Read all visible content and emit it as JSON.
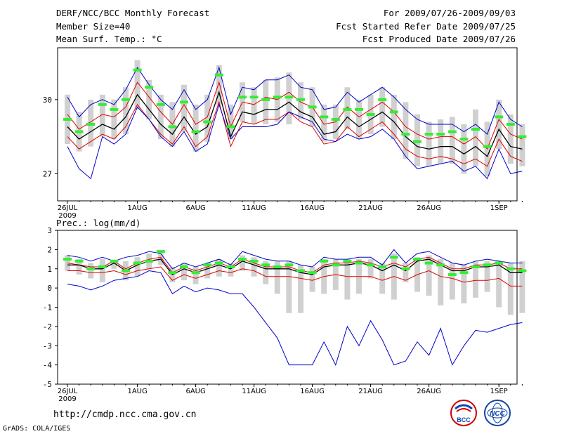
{
  "header": {
    "title": "DERF/NCC/BCC Monthly Forecast",
    "member_size": "Member Size=40",
    "variable1": "Mean Surf. Temp.: °C",
    "period": "For 2009/07/26-2009/09/03",
    "started": "Fcst Started Refer Date 2009/07/25",
    "produced": "Fcst Produced Date 2009/07/26"
  },
  "footer": {
    "url": "http://cmdp.ncc.cma.gov.cn",
    "grads": "GrADS: COLA/IGES",
    "logo1_text": "BCC",
    "logo2_text": "NCC"
  },
  "colors": {
    "max_min": "#0000cc",
    "spread": "#dd0000",
    "mean": "#000000",
    "obs": "#33ee33",
    "box": "#d0d0d0"
  },
  "chart_data": [
    {
      "type": "line",
      "title": "Mean Surf. Temp.: °C",
      "ylim": [
        25.9,
        32.1
      ],
      "yticks": [
        "27",
        "30"
      ],
      "xticks": [
        "26JUL",
        "1AUG",
        "6AUG",
        "11AUG",
        "16AUG",
        "21AUG",
        "26AUG",
        "1SEP"
      ],
      "year_label": "2009",
      "days": 40,
      "series": [
        {
          "name": "max",
          "values": [
            30.1,
            29.3,
            29.8,
            30.0,
            29.8,
            30.4,
            31.3,
            30.6,
            30.0,
            29.6,
            30.4,
            29.6,
            30.0,
            31.3,
            29.4,
            30.5,
            30.4,
            30.8,
            30.8,
            31.0,
            30.5,
            30.4,
            29.6,
            29.7,
            30.3,
            29.9,
            30.2,
            30.5,
            30.1,
            29.6,
            29.2,
            29.0,
            29.0,
            29.0,
            28.7,
            29.0,
            28.6,
            29.9,
            29.2,
            28.9
          ]
        },
        {
          "name": "spread_hi",
          "values": [
            29.4,
            28.8,
            29.1,
            29.4,
            29.3,
            29.7,
            30.7,
            30.1,
            29.5,
            29.0,
            29.8,
            29.0,
            29.3,
            30.7,
            28.9,
            29.9,
            29.8,
            30.1,
            30.0,
            30.3,
            29.9,
            29.7,
            29.0,
            29.1,
            29.7,
            29.3,
            29.6,
            29.9,
            29.5,
            28.9,
            28.6,
            28.4,
            28.5,
            28.5,
            28.2,
            28.5,
            28.0,
            29.2,
            28.6,
            28.4
          ]
        },
        {
          "name": "mean",
          "values": [
            28.9,
            28.4,
            28.7,
            29.0,
            28.8,
            29.3,
            30.2,
            29.6,
            29.0,
            28.6,
            29.3,
            28.6,
            28.9,
            30.3,
            28.5,
            29.5,
            29.4,
            29.6,
            29.6,
            29.9,
            29.5,
            29.3,
            28.6,
            28.7,
            29.3,
            28.9,
            29.2,
            29.5,
            29.1,
            28.5,
            28.1,
            28.0,
            28.1,
            28.1,
            27.8,
            28.1,
            27.7,
            28.8,
            28.1,
            28.0
          ]
        },
        {
          "name": "spread_lo",
          "values": [
            28.5,
            28.0,
            28.3,
            28.6,
            28.4,
            28.9,
            29.8,
            29.2,
            28.6,
            28.2,
            28.9,
            28.1,
            28.5,
            29.9,
            28.1,
            29.1,
            29.0,
            29.2,
            29.2,
            29.5,
            29.1,
            28.9,
            28.2,
            28.3,
            28.9,
            28.5,
            28.8,
            29.1,
            28.6,
            28.0,
            27.7,
            27.6,
            27.7,
            27.6,
            27.4,
            27.6,
            27.3,
            28.4,
            27.7,
            27.5
          ]
        },
        {
          "name": "min",
          "values": [
            28.1,
            27.2,
            26.8,
            28.5,
            28.2,
            28.6,
            29.7,
            29.2,
            28.5,
            28.1,
            28.7,
            27.9,
            28.2,
            29.8,
            28.4,
            28.9,
            28.9,
            28.9,
            29.0,
            29.5,
            29.3,
            29.1,
            28.4,
            28.3,
            28.6,
            28.4,
            28.5,
            28.8,
            28.4,
            27.7,
            27.2,
            27.3,
            27.4,
            27.5,
            27.1,
            27.3,
            26.8,
            28.0,
            27.0,
            27.1
          ]
        },
        {
          "name": "obs",
          "values": [
            29.2,
            28.7,
            29.0,
            29.8,
            29.6,
            30.0,
            31.2,
            30.5,
            29.8,
            28.9,
            29.9,
            28.7,
            29.1,
            31.0,
            28.9,
            30.1,
            30.1,
            30.0,
            30.1,
            30.1,
            30.0,
            29.7,
            29.3,
            29.2,
            29.6,
            29.6,
            29.4,
            30.0,
            29.5,
            28.6,
            28.3,
            28.6,
            28.6,
            28.7,
            28.4,
            28.8,
            28.1,
            29.3,
            29.0,
            28.5
          ]
        }
      ],
      "box_range": {
        "hi": [
          30.2,
          29.5,
          30.0,
          30.2,
          30.0,
          30.5,
          31.6,
          30.8,
          30.2,
          29.9,
          30.6,
          29.8,
          30.2,
          31.4,
          29.8,
          30.7,
          30.5,
          30.8,
          30.9,
          31.1,
          30.7,
          30.5,
          29.8,
          29.8,
          30.5,
          30.0,
          30.2,
          30.5,
          30.2,
          29.9,
          29.4,
          29.1,
          29.2,
          29.3,
          29.0,
          29.6,
          29.1,
          30.0,
          29.4,
          29.0
        ],
        "lo": [
          28.2,
          27.9,
          28.1,
          28.5,
          28.4,
          28.6,
          29.6,
          29.2,
          28.4,
          28.1,
          28.7,
          27.9,
          28.3,
          29.8,
          28.4,
          29.1,
          29.0,
          29.0,
          29.1,
          29.0,
          29.2,
          28.9,
          28.3,
          28.4,
          28.8,
          28.4,
          28.6,
          28.9,
          28.4,
          27.6,
          27.3,
          27.3,
          27.4,
          27.4,
          27.0,
          27.3,
          26.9,
          28.0,
          27.4,
          27.3
        ]
      }
    },
    {
      "type": "line",
      "title": "Prec.: log(mm/d)",
      "ylim": [
        -5,
        3
      ],
      "yticks": [
        "3",
        "2",
        "1",
        "0",
        "-1",
        "-2",
        "-3",
        "-4",
        "-5"
      ],
      "xticks": [
        "26JUL",
        "1AUG",
        "6AUG",
        "11AUG",
        "16AUG",
        "21AUG",
        "26AUG",
        "1SEP"
      ],
      "year_label": "2009",
      "days": 40,
      "series": [
        {
          "name": "max",
          "values": [
            1.7,
            1.6,
            1.4,
            1.6,
            1.4,
            1.6,
            1.7,
            1.9,
            1.8,
            1.0,
            1.3,
            1.1,
            1.3,
            1.5,
            1.2,
            1.9,
            1.7,
            1.5,
            1.4,
            1.4,
            1.2,
            1.1,
            1.6,
            1.5,
            1.5,
            1.6,
            1.6,
            1.2,
            2.0,
            1.3,
            1.8,
            1.9,
            1.6,
            1.3,
            1.2,
            1.4,
            1.5,
            1.4,
            1.3,
            1.3
          ]
        },
        {
          "name": "spread_hi",
          "values": [
            1.3,
            1.2,
            1.1,
            1.1,
            1.4,
            1.0,
            1.3,
            1.5,
            1.6,
            0.8,
            1.1,
            0.9,
            1.1,
            1.3,
            1.1,
            1.5,
            1.3,
            1.1,
            1.1,
            1.1,
            0.9,
            0.8,
            1.2,
            1.3,
            1.3,
            1.4,
            1.3,
            1.1,
            1.3,
            1.1,
            1.5,
            1.6,
            1.3,
            1.0,
            1.0,
            1.2,
            1.2,
            1.3,
            1.0,
            1.0
          ]
        },
        {
          "name": "mean",
          "values": [
            1.2,
            1.2,
            1.0,
            1.0,
            1.3,
            0.9,
            1.2,
            1.4,
            1.5,
            0.7,
            1.0,
            0.8,
            1.0,
            1.2,
            1.0,
            1.4,
            1.2,
            1.0,
            1.0,
            1.0,
            0.8,
            0.7,
            1.1,
            1.2,
            1.2,
            1.3,
            1.2,
            0.9,
            1.2,
            0.9,
            1.4,
            1.5,
            1.2,
            0.9,
            0.9,
            1.1,
            1.1,
            1.2,
            0.8,
            0.8
          ]
        },
        {
          "name": "spread_lo",
          "values": [
            0.9,
            0.9,
            0.8,
            0.8,
            0.9,
            0.7,
            0.9,
            1.0,
            1.1,
            0.4,
            0.7,
            0.5,
            0.7,
            0.9,
            0.8,
            1.0,
            0.9,
            0.6,
            0.6,
            0.6,
            0.5,
            0.4,
            0.6,
            0.7,
            0.6,
            0.6,
            0.6,
            0.4,
            0.6,
            0.4,
            0.7,
            0.9,
            0.6,
            0.5,
            0.3,
            0.4,
            0.4,
            0.5,
            0.1,
            0.1
          ]
        },
        {
          "name": "min",
          "values": [
            0.2,
            0.1,
            -0.1,
            0.1,
            0.4,
            0.5,
            0.6,
            0.9,
            0.8,
            -0.3,
            0.1,
            -0.2,
            0.0,
            -0.1,
            -0.3,
            -0.3,
            -1.0,
            -1.8,
            -2.6,
            -4.0,
            -4.0,
            -4.0,
            -2.8,
            -4.0,
            -2.0,
            -3.0,
            -1.7,
            -2.7,
            -4.0,
            -3.8,
            -2.8,
            -3.5,
            -2.1,
            -4.0,
            -3.0,
            -2.2,
            -2.3,
            -2.1,
            -1.9,
            -1.8
          ]
        },
        {
          "name": "obs",
          "values": [
            1.5,
            1.4,
            1.0,
            1.1,
            1.4,
            0.9,
            1.3,
            1.4,
            1.9,
            0.8,
            1.1,
            0.8,
            1.2,
            1.3,
            1.1,
            1.5,
            1.4,
            1.2,
            1.1,
            1.2,
            0.9,
            0.8,
            1.4,
            1.2,
            1.4,
            1.3,
            1.2,
            1.1,
            1.6,
            1.0,
            1.5,
            1.3,
            1.2,
            0.7,
            0.8,
            1.1,
            1.2,
            1.3,
            1.0,
            0.9
          ]
        }
      ],
      "box_range": {
        "hi": [
          1.7,
          1.5,
          1.3,
          1.5,
          1.4,
          1.4,
          1.6,
          1.8,
          1.8,
          1.1,
          1.3,
          1.1,
          1.3,
          1.5,
          1.3,
          1.7,
          1.6,
          1.4,
          1.4,
          1.4,
          1.2,
          1.1,
          1.5,
          1.5,
          1.5,
          1.5,
          1.5,
          1.3,
          1.8,
          1.3,
          1.6,
          1.7,
          1.5,
          1.3,
          1.2,
          1.4,
          1.4,
          1.4,
          1.3,
          1.4
        ],
        "lo": [
          0.9,
          0.7,
          0.5,
          0.3,
          1.0,
          0.4,
          0.6,
          1.0,
          1.2,
          0.3,
          0.4,
          0.2,
          0.5,
          0.6,
          0.6,
          0.9,
          0.6,
          0.2,
          -0.3,
          -1.3,
          -1.3,
          -0.2,
          -0.3,
          -0.1,
          -0.6,
          -0.3,
          0.5,
          -0.3,
          -0.6,
          0.3,
          -0.2,
          -0.4,
          -0.9,
          -0.6,
          -0.8,
          -0.5,
          -0.2,
          -1.0,
          -1.4,
          -1.3
        ]
      }
    }
  ]
}
